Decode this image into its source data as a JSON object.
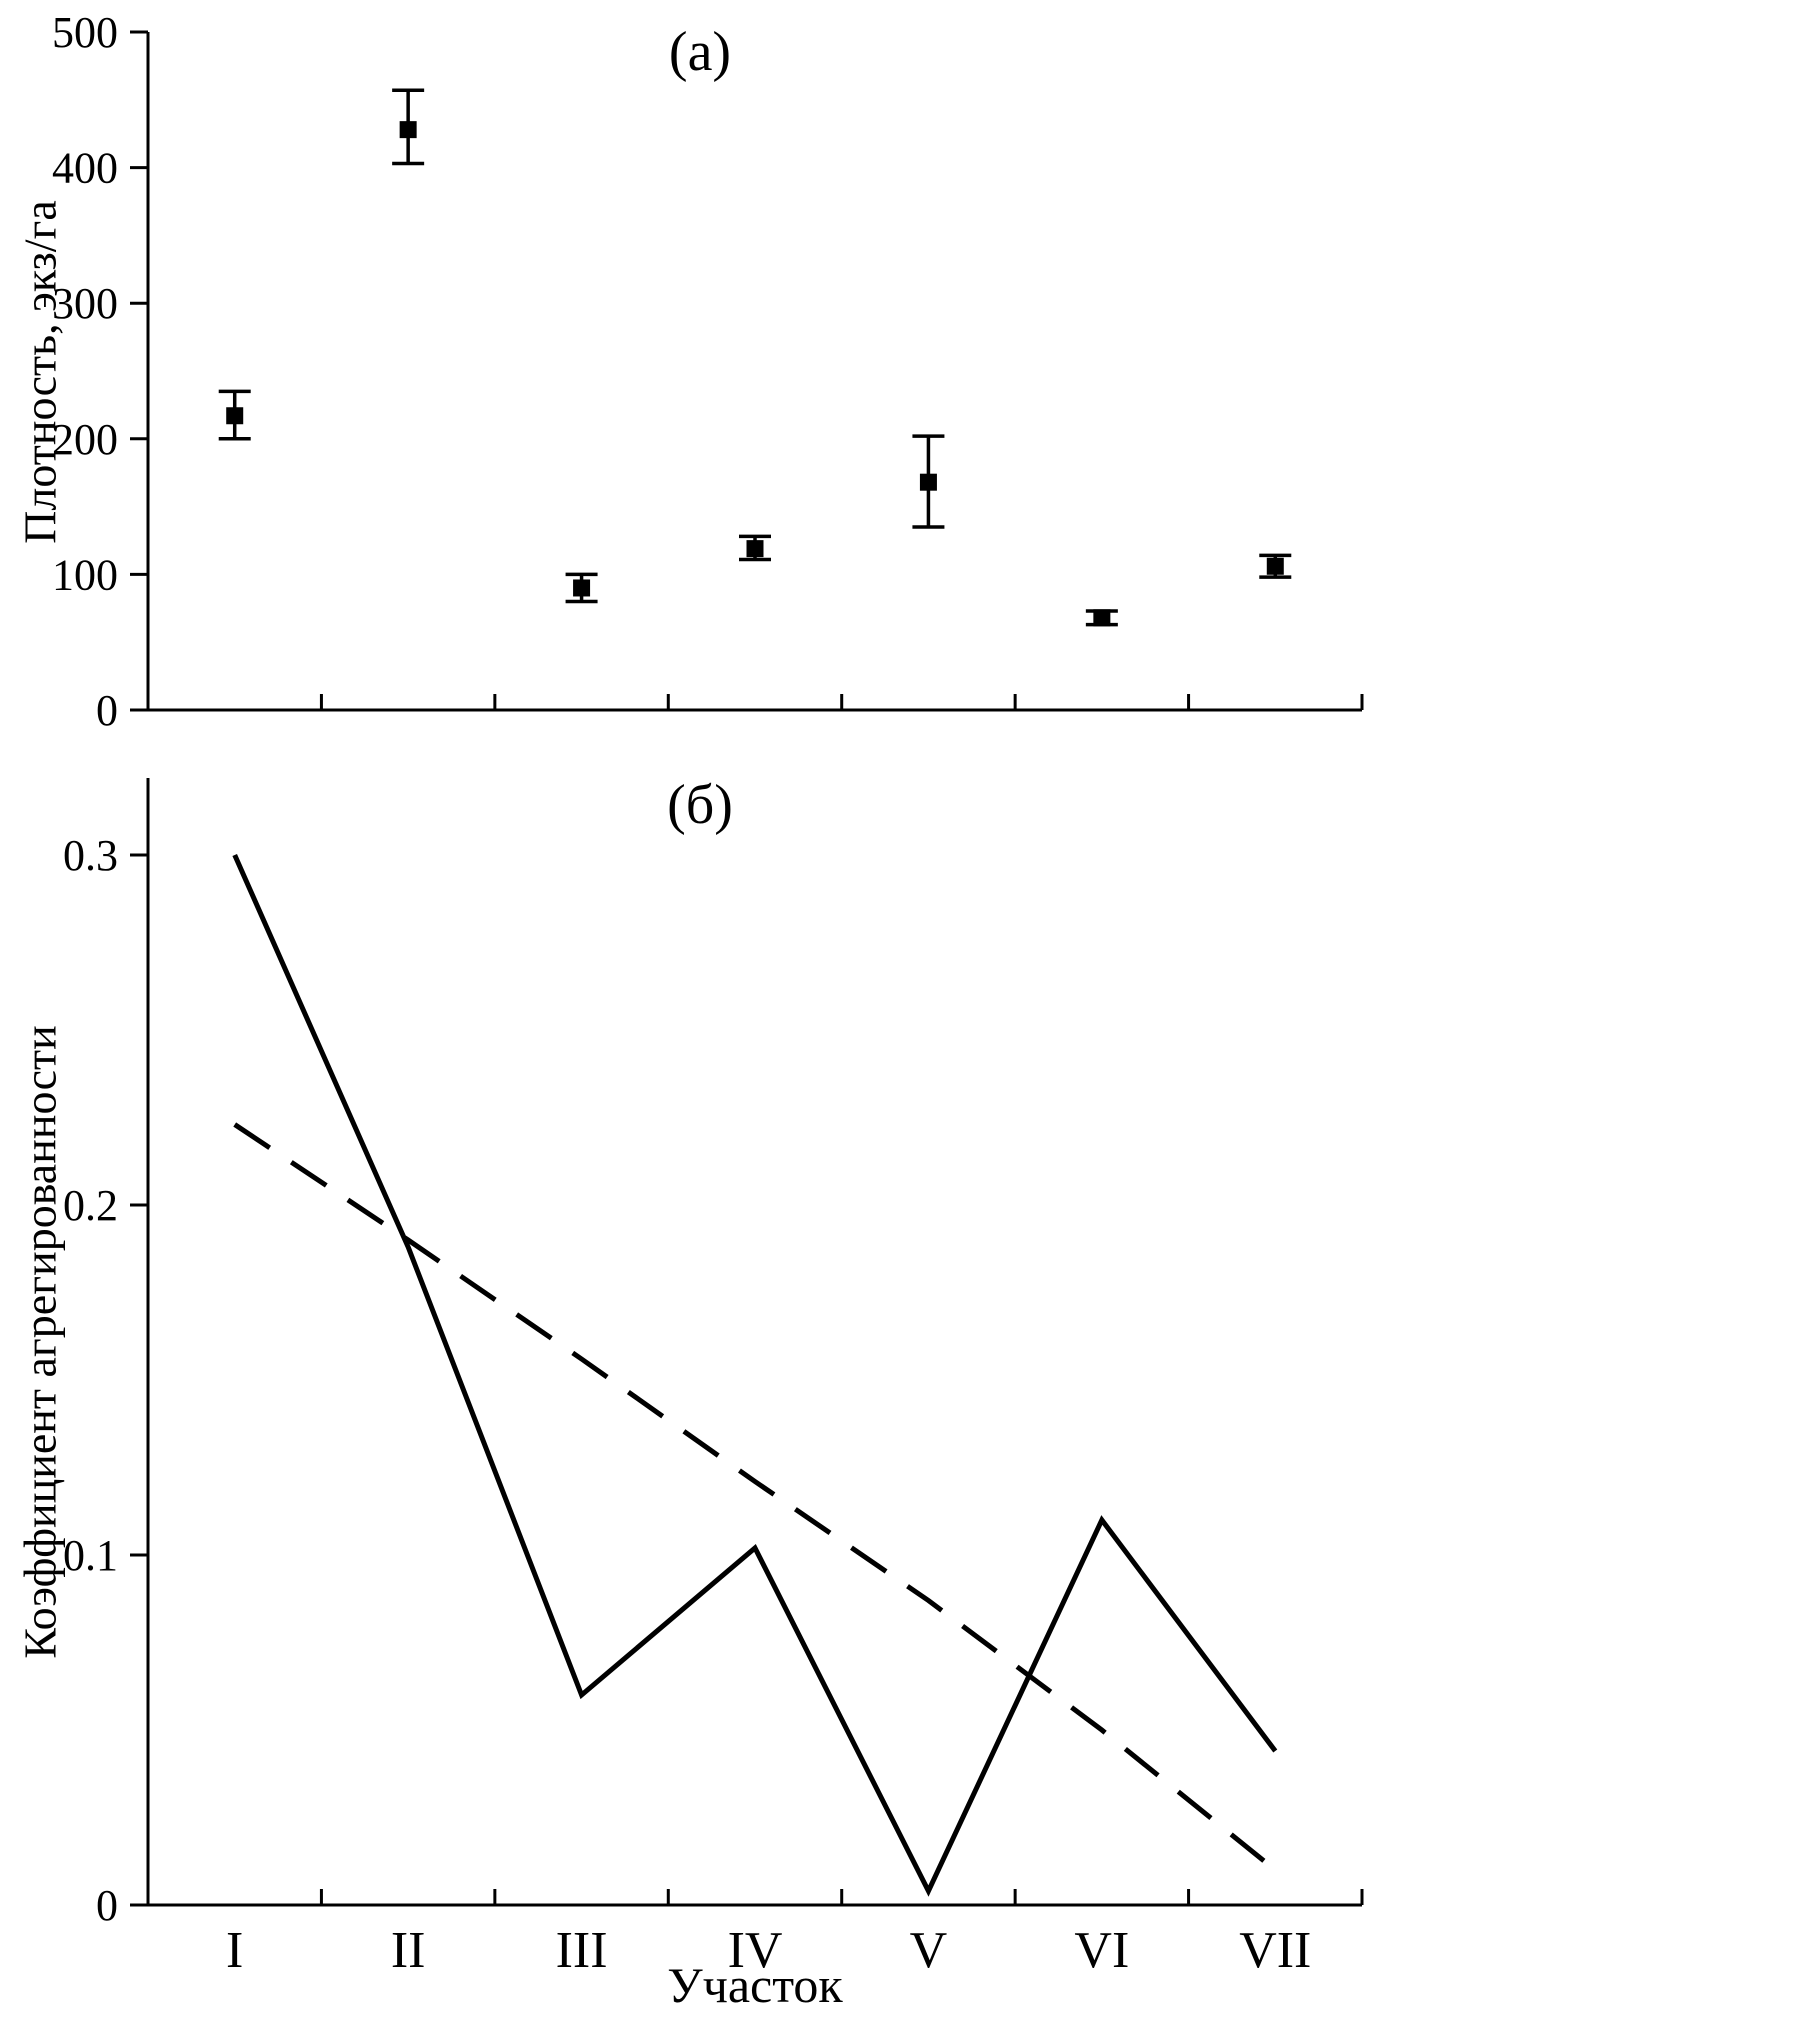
{
  "figure": {
    "background": "#ffffff",
    "ink_color": "#000000"
  },
  "chart_data": [
    {
      "type": "scatter",
      "panel_label": "(а)",
      "title": "",
      "xlabel": "",
      "ylabel": "Плотность, экз/га",
      "categories": [
        "I",
        "II",
        "III",
        "IV",
        "V",
        "VI",
        "VII"
      ],
      "values": [
        217,
        428,
        90,
        119,
        168,
        68,
        106
      ],
      "errors_minus": [
        17,
        25,
        10,
        8,
        33,
        5,
        8
      ],
      "errors_plus": [
        18,
        29,
        10,
        9,
        34,
        5,
        8
      ],
      "yticks": [
        0,
        100,
        200,
        300,
        400,
        500
      ],
      "ytick_labels": [
        "0",
        "100",
        "200",
        "300",
        "400",
        "500"
      ],
      "ylim": [
        0,
        500
      ],
      "grid": false,
      "legend": "none",
      "marker": "filled-square",
      "show_x_tick_labels": false
    },
    {
      "type": "line",
      "panel_label": "(б)",
      "title": "",
      "xlabel": "Участок",
      "ylabel": "Коэффициент агрегированности",
      "categories": [
        "I",
        "II",
        "III",
        "IV",
        "V",
        "VI",
        "VII"
      ],
      "series": [
        {
          "name": "solid-line",
          "style": "solid",
          "values": [
            0.3,
            0.188,
            0.06,
            0.102,
            0.004,
            0.11,
            0.044
          ]
        },
        {
          "name": "dashed-line",
          "style": "dashed",
          "values": [
            0.223,
            0.19,
            0.156,
            0.121,
            0.087,
            0.05,
            0.01
          ]
        }
      ],
      "yticks": [
        0,
        0.1,
        0.2,
        0.3
      ],
      "ytick_labels": [
        "0",
        "0.1",
        "0.2",
        "0.3"
      ],
      "ylim": [
        0,
        0.322
      ],
      "grid": false,
      "legend": "none",
      "show_x_tick_labels": true
    }
  ]
}
